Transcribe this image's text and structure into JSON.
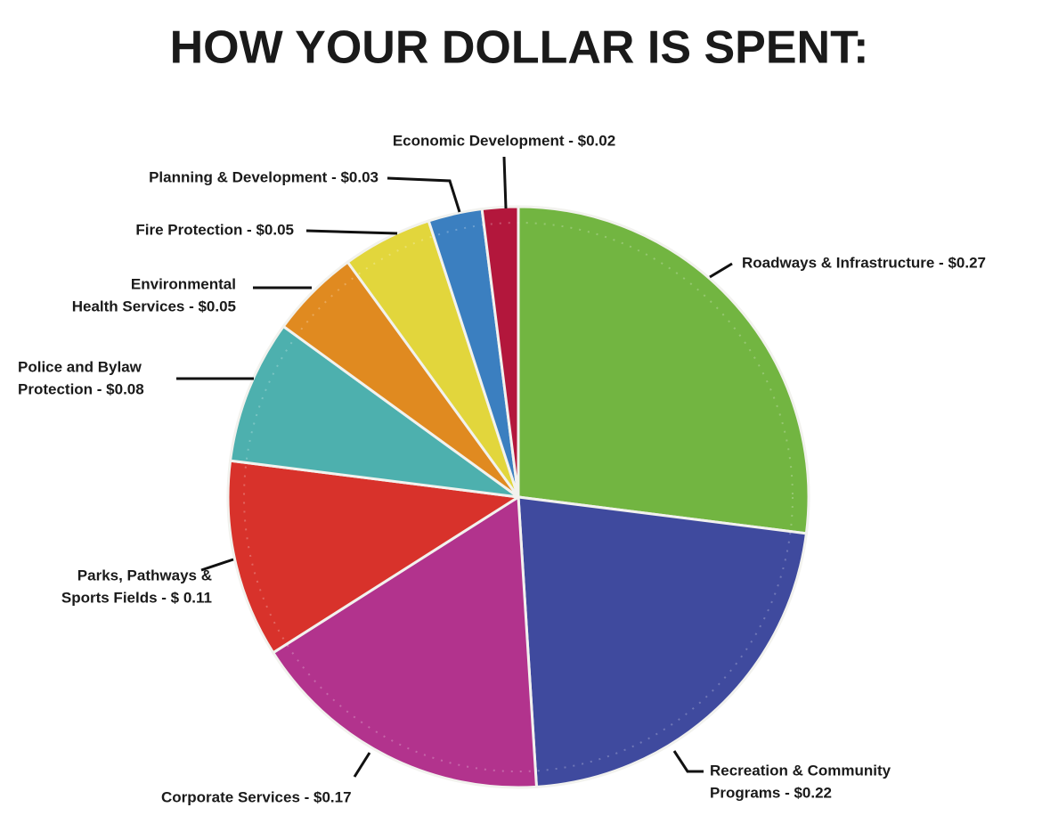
{
  "chart_data": {
    "type": "pie",
    "title": "HOW YOUR DOLLAR IS SPENT:",
    "labels": [
      [
        "Roadways & Infrastructure - $0.27"
      ],
      [
        "Recreation & Community",
        "Programs - $0.22"
      ],
      [
        "Corporate Services - $0.17"
      ],
      [
        "Parks, Pathways &",
        "Sports Fields - $ 0.11"
      ],
      [
        "Police and Bylaw",
        "Protection - $0.08"
      ],
      [
        "Environmental",
        "Health Services - $0.05"
      ],
      [
        "Fire Protection - $0.05"
      ],
      [
        "Planning & Development - $0.03"
      ],
      [
        "Economic Development - $0.02"
      ]
    ],
    "values": [
      0.27,
      0.22,
      0.17,
      0.11,
      0.08,
      0.05,
      0.05,
      0.03,
      0.02
    ],
    "colors": [
      "#72b541",
      "#3f4a9e",
      "#b2338d",
      "#d8322b",
      "#4db0ae",
      "#e08a20",
      "#e2d63c",
      "#3b7fc0",
      "#b3173c"
    ]
  }
}
